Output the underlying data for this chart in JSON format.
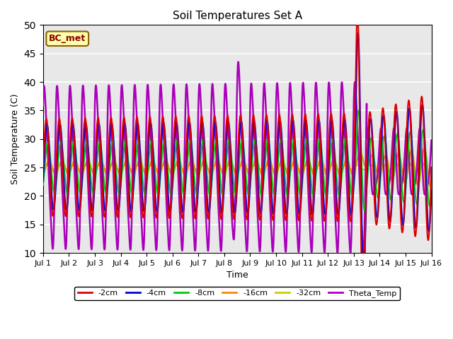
{
  "title": "Soil Temperatures Set A",
  "xlabel": "Time",
  "ylabel": "Soil Temperature (C)",
  "ylim": [
    10,
    50
  ],
  "yticks": [
    10,
    15,
    20,
    25,
    30,
    35,
    40,
    45,
    50
  ],
  "xlim": [
    0,
    15
  ],
  "xtick_labels": [
    "Jul 1",
    "Jul 2",
    "Jul 3",
    "Jul 4",
    "Jul 5",
    "Jul 6",
    "Jul 7",
    "Jul 8",
    "Jul 9",
    "Jul 10",
    "Jul 11",
    "Jul 12",
    "Jul 13",
    "Jul 14",
    "Jul 15",
    "Jul 16"
  ],
  "xtick_positions": [
    0,
    1,
    2,
    3,
    4,
    5,
    6,
    7,
    8,
    9,
    10,
    11,
    12,
    13,
    14,
    15
  ],
  "series": {
    "-2cm": {
      "color": "#dd0000",
      "linewidth": 1.5
    },
    "-4cm": {
      "color": "#0000dd",
      "linewidth": 1.5
    },
    "-8cm": {
      "color": "#00cc00",
      "linewidth": 1.5
    },
    "-16cm": {
      "color": "#ff8800",
      "linewidth": 1.5
    },
    "-32cm": {
      "color": "#cccc00",
      "linewidth": 1.5
    },
    "Theta_Temp": {
      "color": "#aa00bb",
      "linewidth": 1.8
    }
  },
  "legend_label": "BC_met",
  "background_color": "#e8e8e8",
  "grid_color": "#ffffff",
  "fig_background": "#ffffff",
  "base_temp": 25.0,
  "amp_2cm": 8.5,
  "amp_4cm": 7.5,
  "amp_8cm": 4.5,
  "amp_16cm": 1.2,
  "amp_32cm": 0.4,
  "amp_theta": 13.0,
  "freq_per_day": 2.0,
  "phase_2cm": 0.0,
  "phase_4cm": 0.35,
  "phase_8cm": 0.75,
  "phase_16cm": 1.3,
  "phase_32cm": 0.0,
  "phase_theta": -0.55
}
